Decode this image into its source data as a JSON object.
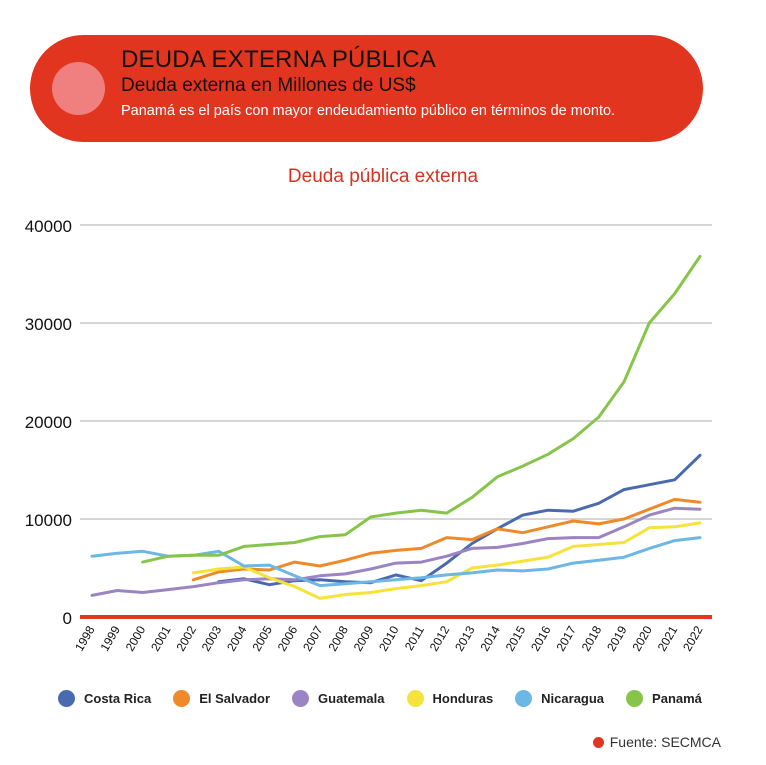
{
  "header": {
    "title": "DEUDA EXTERNA PÚBLICA",
    "subtitle": "Deuda externa en Millones de US$",
    "note": "Panamá es el país con mayor endeudamiento público en términos de monto."
  },
  "source": "Fuente: SECMCA",
  "chart_data": {
    "type": "line",
    "title": "Deuda pública externa",
    "xlabel": "",
    "ylabel": "",
    "ylim": [
      0,
      40000
    ],
    "yticks": [
      "0",
      "10000",
      "20000",
      "30000",
      "40000"
    ],
    "categories": [
      "1998",
      "1999",
      "2000",
      "2001",
      "2002",
      "2003",
      "2004",
      "2005",
      "2006",
      "2007",
      "2008",
      "2009",
      "2010",
      "2011",
      "2012",
      "2013",
      "2014",
      "2015",
      "2016",
      "2017",
      "2018",
      "2019",
      "2020",
      "2021",
      "2022"
    ],
    "series": [
      {
        "name": "Costa Rica",
        "color": "#4a6ab0",
        "values": [
          null,
          null,
          null,
          null,
          null,
          3600,
          3900,
          3300,
          3700,
          3800,
          3600,
          3500,
          4300,
          3700,
          5500,
          7500,
          9000,
          10400,
          10900,
          10800,
          11600,
          13000,
          13500,
          14000,
          16500
        ]
      },
      {
        "name": "El Salvador",
        "color": "#ee8a2a",
        "values": [
          null,
          null,
          null,
          null,
          3800,
          4600,
          4900,
          4800,
          5600,
          5200,
          5800,
          6500,
          6800,
          7000,
          8100,
          7900,
          9000,
          8600,
          9200,
          9800,
          9500,
          10000,
          11000,
          12000,
          11700
        ]
      },
      {
        "name": "Guatemala",
        "color": "#9b84c2",
        "values": [
          2200,
          2700,
          2500,
          2800,
          3100,
          3500,
          3800,
          3900,
          3800,
          4200,
          4400,
          4900,
          5500,
          5600,
          6200,
          7000,
          7100,
          7500,
          8000,
          8100,
          8100,
          9200,
          10400,
          11100,
          11000
        ]
      },
      {
        "name": "Honduras",
        "color": "#f5e23a",
        "values": [
          null,
          null,
          null,
          null,
          4500,
          4900,
          5100,
          4000,
          3100,
          1900,
          2300,
          2500,
          2900,
          3200,
          3600,
          5000,
          5300,
          5700,
          6100,
          7200,
          7400,
          7600,
          9100,
          9200,
          9600
        ]
      },
      {
        "name": "Nicaragua",
        "color": "#6cb7e3",
        "values": [
          6200,
          6500,
          6700,
          6200,
          6300,
          6700,
          5200,
          5300,
          4200,
          3200,
          3400,
          3600,
          3800,
          4000,
          4300,
          4500,
          4800,
          4700,
          4900,
          5500,
          5800,
          6100,
          7000,
          7800,
          8100
        ]
      },
      {
        "name": "Panamá",
        "color": "#86c44a",
        "values": [
          null,
          null,
          5600,
          6200,
          6300,
          6300,
          7200,
          7400,
          7600,
          8200,
          8400,
          10200,
          10600,
          10900,
          10600,
          12200,
          14300,
          15400,
          16600,
          18200,
          20400,
          24000,
          30000,
          33000,
          36800
        ]
      }
    ]
  }
}
